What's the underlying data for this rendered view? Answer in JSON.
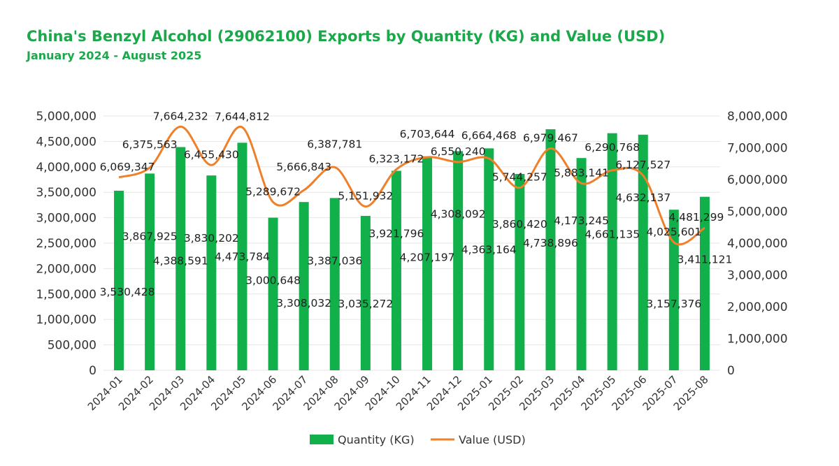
{
  "chart_data": {
    "type": "bar+line",
    "title": "China's Benzyl Alcohol (29062100) Exports by Quantity (KG) and Value (USD)",
    "subtitle": "January 2024 - August 2025",
    "categories": [
      "2024-01",
      "2024-02",
      "2024-03",
      "2024-04",
      "2024-05",
      "2024-06",
      "2024-07",
      "2024-08",
      "2024-09",
      "2024-10",
      "2024-11",
      "2024-12",
      "2025-01",
      "2025-02",
      "2025-03",
      "2025-04",
      "2025-05",
      "2025-06",
      "2025-07",
      "2025-08"
    ],
    "series": [
      {
        "name": "Quantity (KG)",
        "type": "bar",
        "axis": "left",
        "color": "#11b04b",
        "values": [
          3530428,
          3867925,
          4388591,
          3830202,
          4473784,
          3000648,
          3308032,
          3387036,
          3035272,
          3921796,
          4207197,
          4308092,
          4363164,
          3860420,
          4738896,
          4173245,
          4661135,
          4632137,
          3157376,
          3411121
        ]
      },
      {
        "name": "Value (USD)",
        "type": "line",
        "axis": "right",
        "color": "#f07f2a",
        "values": [
          6069347,
          6375563,
          7664232,
          6455430,
          7644812,
          5289672,
          5666843,
          6387781,
          5151932,
          6323172,
          6703644,
          6550240,
          6664468,
          5744257,
          6979467,
          5883141,
          6290768,
          6127527,
          4025601,
          4481299
        ]
      }
    ],
    "ylim_left": [
      0,
      5000000
    ],
    "yticks_left": [
      "0",
      "500,000",
      "1,000,000",
      "1,500,000",
      "2,000,000",
      "2,500,000",
      "3,000,000",
      "3,500,000",
      "4,000,000",
      "4,500,000",
      "5,000,000"
    ],
    "ylim_right": [
      0,
      8000000
    ],
    "yticks_right": [
      "0",
      "1,000,000",
      "2,000,000",
      "3,000,000",
      "4,000,000",
      "5,000,000",
      "6,000,000",
      "7,000,000",
      "8,000,000"
    ],
    "grid": true,
    "legend": "bottom"
  }
}
